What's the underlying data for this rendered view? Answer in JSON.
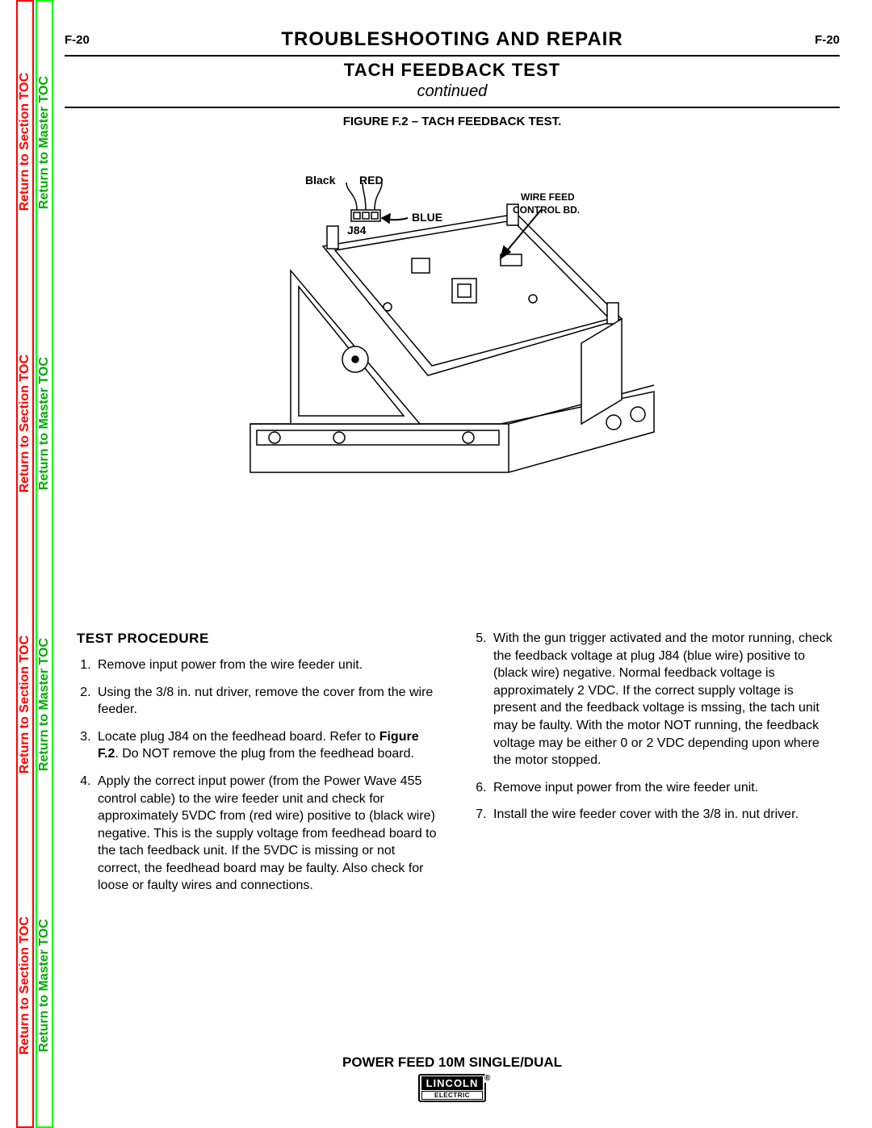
{
  "header": {
    "page_num_left": "F-20",
    "page_num_right": "F-20",
    "section_title": "TROUBLESHOOTING  AND  REPAIR",
    "test_title": "TACH  FEEDBACK  TEST",
    "continued": "continued",
    "figure_caption": "FIGURE  F.2  –  TACH  FEEDBACK  TEST."
  },
  "side_tabs": {
    "section_label": "Return to Section TOC",
    "master_label": "Return to Master TOC",
    "section_color": "#ff0000",
    "master_color": "#00aa00"
  },
  "figure": {
    "labels": {
      "black": "Black",
      "red": "RED",
      "blue": "BLUE",
      "j84": "J84",
      "wire_feed": "WIRE FEED",
      "control_bd": "CONTROL BD."
    }
  },
  "procedure": {
    "heading": "TEST  PROCEDURE",
    "steps_left": [
      "Remove input power from the wire feeder unit.",
      "Using the 3/8 in. nut driver, remove the cover from the wire feeder.",
      "Locate plug J84 on the feedhead board.  Refer to <b>Figure F.2</b>.  Do NOT remove the plug from the feedhead board.",
      "Apply the correct input power (from the Power Wave 455 control cable) to the wire feeder unit and check for approximately 5VDC from (red wire) positive to (black wire) negative.  This is the supply voltage from feedhead board to the tach feedback unit.  If the  5VDC is missing or not correct, the feedhead board may be faulty.  Also check for loose or faulty wires and connections."
    ],
    "steps_right": [
      "With the gun trigger activated and the motor running, check the feedback voltage at plug J84 (blue wire) positive to (black wire) negative.  Normal feedback voltage is approximately 2 VDC.  If the correct supply voltage is present and the feedback voltage is mssing, the tach unit may be faulty.  With the motor NOT running, the feedback voltage may be either 0 or 2 VDC depending upon where the motor stopped.",
      "Remove input power from the wire feeder unit.",
      "Install the wire feeder cover with the 3/8 in. nut driver."
    ]
  },
  "footer": {
    "product": "POWER FEED 10M SINGLE/DUAL",
    "logo_top": "LINCOLN",
    "logo_bottom": "ELECTRIC"
  },
  "colors": {
    "text": "#000000",
    "bg": "#ffffff"
  }
}
